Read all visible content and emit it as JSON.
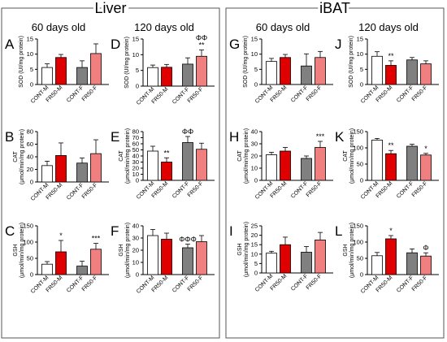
{
  "sections": [
    {
      "title": "Liver",
      "col1": "60 days old",
      "col2": "120 days old"
    },
    {
      "title": "iBAT",
      "col1": "60 days old",
      "col2": "120 days old"
    }
  ],
  "colors": {
    "cont_m": "#ffffff",
    "fr50_m": "#e00000",
    "cont_f": "#808080",
    "fr50_f": "#f08080",
    "outline": "#000000",
    "frame": "#555555"
  },
  "chart_data": [
    {
      "type": "bar",
      "panel": "A",
      "ylabel": "SOD (UI/mg protein)",
      "ylim": [
        0,
        15
      ],
      "yticks": [
        0,
        5,
        10,
        15
      ],
      "categories": [
        "CONT-M",
        "FR50-M",
        "CONT-F",
        "FR50-F"
      ],
      "values": [
        5.6,
        8.9,
        5.6,
        10.2
      ],
      "errors": [
        1.2,
        1.0,
        2.2,
        3.2
      ],
      "annotations": [
        "",
        "",
        "",
        ""
      ]
    },
    {
      "type": "bar",
      "panel": "B",
      "ylabel": "CAT (μmol/min/mg protein)",
      "ylim": [
        0,
        80
      ],
      "yticks": [
        0,
        20,
        40,
        60,
        80
      ],
      "categories": [
        "CONT-M",
        "FR50-M",
        "CONT-F",
        "FR50-F"
      ],
      "values": [
        26,
        42,
        30,
        45
      ],
      "errors": [
        7,
        20,
        8,
        22
      ],
      "annotations": [
        "",
        "",
        "",
        ""
      ]
    },
    {
      "type": "bar",
      "panel": "C",
      "ylabel": "GSH (μmol/min/mg protein)",
      "ylim": [
        0,
        150
      ],
      "yticks": [
        0,
        50,
        100,
        150
      ],
      "categories": [
        "CONT-M",
        "FR50-M",
        "CONT-F",
        "FR50-F"
      ],
      "values": [
        32,
        70,
        26,
        78
      ],
      "errors": [
        8,
        35,
        15,
        18
      ],
      "annotations": [
        "",
        "*",
        "",
        "***"
      ]
    },
    {
      "type": "bar",
      "panel": "D",
      "ylabel": "SOD (UI/mg protein)",
      "ylim": [
        0,
        15
      ],
      "yticks": [
        0,
        5,
        10,
        15
      ],
      "categories": [
        "CONT-M",
        "FR50-M",
        "CONT-F",
        "FR50-F"
      ],
      "values": [
        5.9,
        6.0,
        7.0,
        9.5
      ],
      "errors": [
        0.8,
        0.9,
        2.0,
        2.0
      ],
      "annotations": [
        "",
        "",
        "",
        "ΦΦ\n**"
      ]
    },
    {
      "type": "bar",
      "panel": "E",
      "ylabel": "CAT (μmol/min/mg protein)",
      "ylim": [
        0,
        80
      ],
      "yticks": [
        0,
        10,
        20,
        30,
        40,
        50,
        60,
        70,
        80
      ],
      "categories": [
        "CONT-M",
        "FR50-M",
        "CONT-F",
        "FR50-F"
      ],
      "values": [
        48,
        30,
        62,
        51
      ],
      "errors": [
        8,
        7,
        10,
        10
      ],
      "annotations": [
        "",
        "**",
        "ΦΦ",
        ""
      ]
    },
    {
      "type": "bar",
      "panel": "F",
      "ylabel": "GSH (μmol/min/mg protein)",
      "ylim": [
        0,
        40
      ],
      "yticks": [
        0,
        10,
        20,
        30,
        40
      ],
      "categories": [
        "CONT-M",
        "FR50-M",
        "CONT-F",
        "FR50-F"
      ],
      "values": [
        32,
        29,
        22,
        27
      ],
      "errors": [
        5,
        5,
        3,
        5
      ],
      "annotations": [
        "",
        "",
        "ΦΦΦ",
        ""
      ]
    },
    {
      "type": "bar",
      "panel": "G",
      "ylabel": "SOD (UI/mg protein)",
      "ylim": [
        0,
        15
      ],
      "yticks": [
        0,
        5,
        10,
        15
      ],
      "categories": [
        "CONT-M",
        "FR50-M",
        "CONT-F",
        "FR50-F"
      ],
      "values": [
        7.6,
        8.9,
        6.1,
        8.9
      ],
      "errors": [
        1.0,
        1.0,
        4.0,
        2.0
      ],
      "annotations": [
        "",
        "",
        "",
        ""
      ]
    },
    {
      "type": "bar",
      "panel": "H",
      "ylabel": "CAT (μmol/min/mg protein)",
      "ylim": [
        0,
        40
      ],
      "yticks": [
        0,
        10,
        20,
        30,
        40
      ],
      "categories": [
        "CONT-M",
        "FR50-M",
        "CONT-F",
        "FR50-F"
      ],
      "values": [
        21,
        24,
        18,
        27
      ],
      "errors": [
        2,
        3,
        2,
        5
      ],
      "annotations": [
        "",
        "",
        "",
        "***"
      ]
    },
    {
      "type": "bar",
      "panel": "I",
      "ylabel": "GSH (μmol/min/mg protein)",
      "ylim": [
        0,
        25
      ],
      "yticks": [
        0,
        5,
        10,
        15,
        20,
        25
      ],
      "categories": [
        "CONT-M",
        "FR50-M",
        "CONT-F",
        "FR50-F"
      ],
      "values": [
        10.5,
        15,
        11,
        17.5
      ],
      "errors": [
        1.0,
        4.0,
        3.0,
        4.0
      ],
      "annotations": [
        "",
        "",
        "",
        ""
      ]
    },
    {
      "type": "bar",
      "panel": "J",
      "ylabel": "SOD (UI/mg protein)",
      "ylim": [
        0,
        15
      ],
      "yticks": [
        0,
        5,
        10,
        15
      ],
      "categories": [
        "CONT-M",
        "FR50-M",
        "CONT-F",
        "FR50-F"
      ],
      "values": [
        9.3,
        6.3,
        8.1,
        6.8
      ],
      "errors": [
        1.5,
        1.5,
        0.8,
        1.0
      ],
      "annotations": [
        "",
        "**",
        "",
        ""
      ]
    },
    {
      "type": "bar",
      "panel": "K",
      "ylabel": "CAT (μmol/min/mg protein)",
      "ylim": [
        0,
        150
      ],
      "yticks": [
        0,
        50,
        100,
        150
      ],
      "categories": [
        "CONT-M",
        "FR50-M",
        "CONT-F",
        "FR50-F"
      ],
      "values": [
        124,
        82,
        105,
        78
      ],
      "errors": [
        5,
        10,
        6,
        5
      ],
      "annotations": [
        "",
        "**",
        "",
        "*"
      ]
    },
    {
      "type": "bar",
      "panel": "L",
      "ylabel": "GSH (μmol/min/mg protein)",
      "ylim": [
        0,
        150
      ],
      "yticks": [
        0,
        50,
        100,
        150
      ],
      "categories": [
        "CONT-M",
        "FR50-M",
        "CONT-F",
        "FR50-F"
      ],
      "values": [
        58,
        110,
        67,
        57
      ],
      "errors": [
        10,
        10,
        12,
        10
      ],
      "annotations": [
        "",
        "*",
        "",
        "Φ"
      ]
    }
  ]
}
